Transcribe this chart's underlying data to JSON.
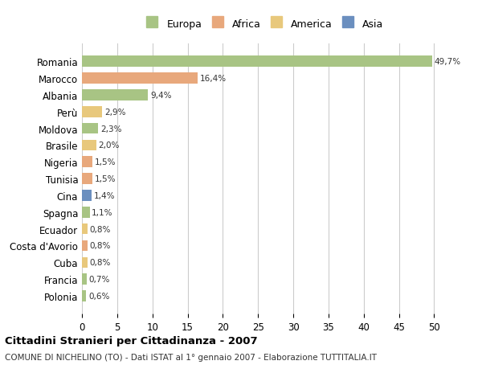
{
  "categories": [
    "Romania",
    "Marocco",
    "Albania",
    "Perù",
    "Moldova",
    "Brasile",
    "Nigeria",
    "Tunisia",
    "Cina",
    "Spagna",
    "Ecuador",
    "Costa d'Avorio",
    "Cuba",
    "Francia",
    "Polonia"
  ],
  "values": [
    49.7,
    16.4,
    9.4,
    2.9,
    2.3,
    2.0,
    1.5,
    1.5,
    1.4,
    1.1,
    0.8,
    0.8,
    0.8,
    0.7,
    0.6
  ],
  "labels": [
    "49,7%",
    "16,4%",
    "9,4%",
    "2,9%",
    "2,3%",
    "2,0%",
    "1,5%",
    "1,5%",
    "1,4%",
    "1,1%",
    "0,8%",
    "0,8%",
    "0,8%",
    "0,7%",
    "0,6%"
  ],
  "colors": [
    "#a8c484",
    "#e8a87c",
    "#a8c484",
    "#e8c87c",
    "#a8c484",
    "#e8c87c",
    "#e8a87c",
    "#e8a87c",
    "#6b8fbf",
    "#a8c484",
    "#e8c87c",
    "#e8a87c",
    "#e8c87c",
    "#a8c484",
    "#a8c484"
  ],
  "continent": [
    "Europa",
    "Africa",
    "Europa",
    "America",
    "Europa",
    "America",
    "Africa",
    "Africa",
    "Asia",
    "Europa",
    "America",
    "Africa",
    "America",
    "Europa",
    "Europa"
  ],
  "legend_labels": [
    "Europa",
    "Africa",
    "America",
    "Asia"
  ],
  "legend_colors": [
    "#a8c484",
    "#e8a87c",
    "#e8c87c",
    "#6b8fbf"
  ],
  "title": "Cittadini Stranieri per Cittadinanza - 2007",
  "subtitle": "COMUNE DI NICHELINO (TO) - Dati ISTAT al 1° gennaio 2007 - Elaborazione TUTTITALIA.IT",
  "xlim": [
    0,
    52
  ],
  "xlabel_ticks": [
    0,
    5,
    10,
    15,
    20,
    25,
    30,
    35,
    40,
    45,
    50
  ],
  "background_color": "#ffffff",
  "grid_color": "#cccccc",
  "bar_height": 0.65
}
